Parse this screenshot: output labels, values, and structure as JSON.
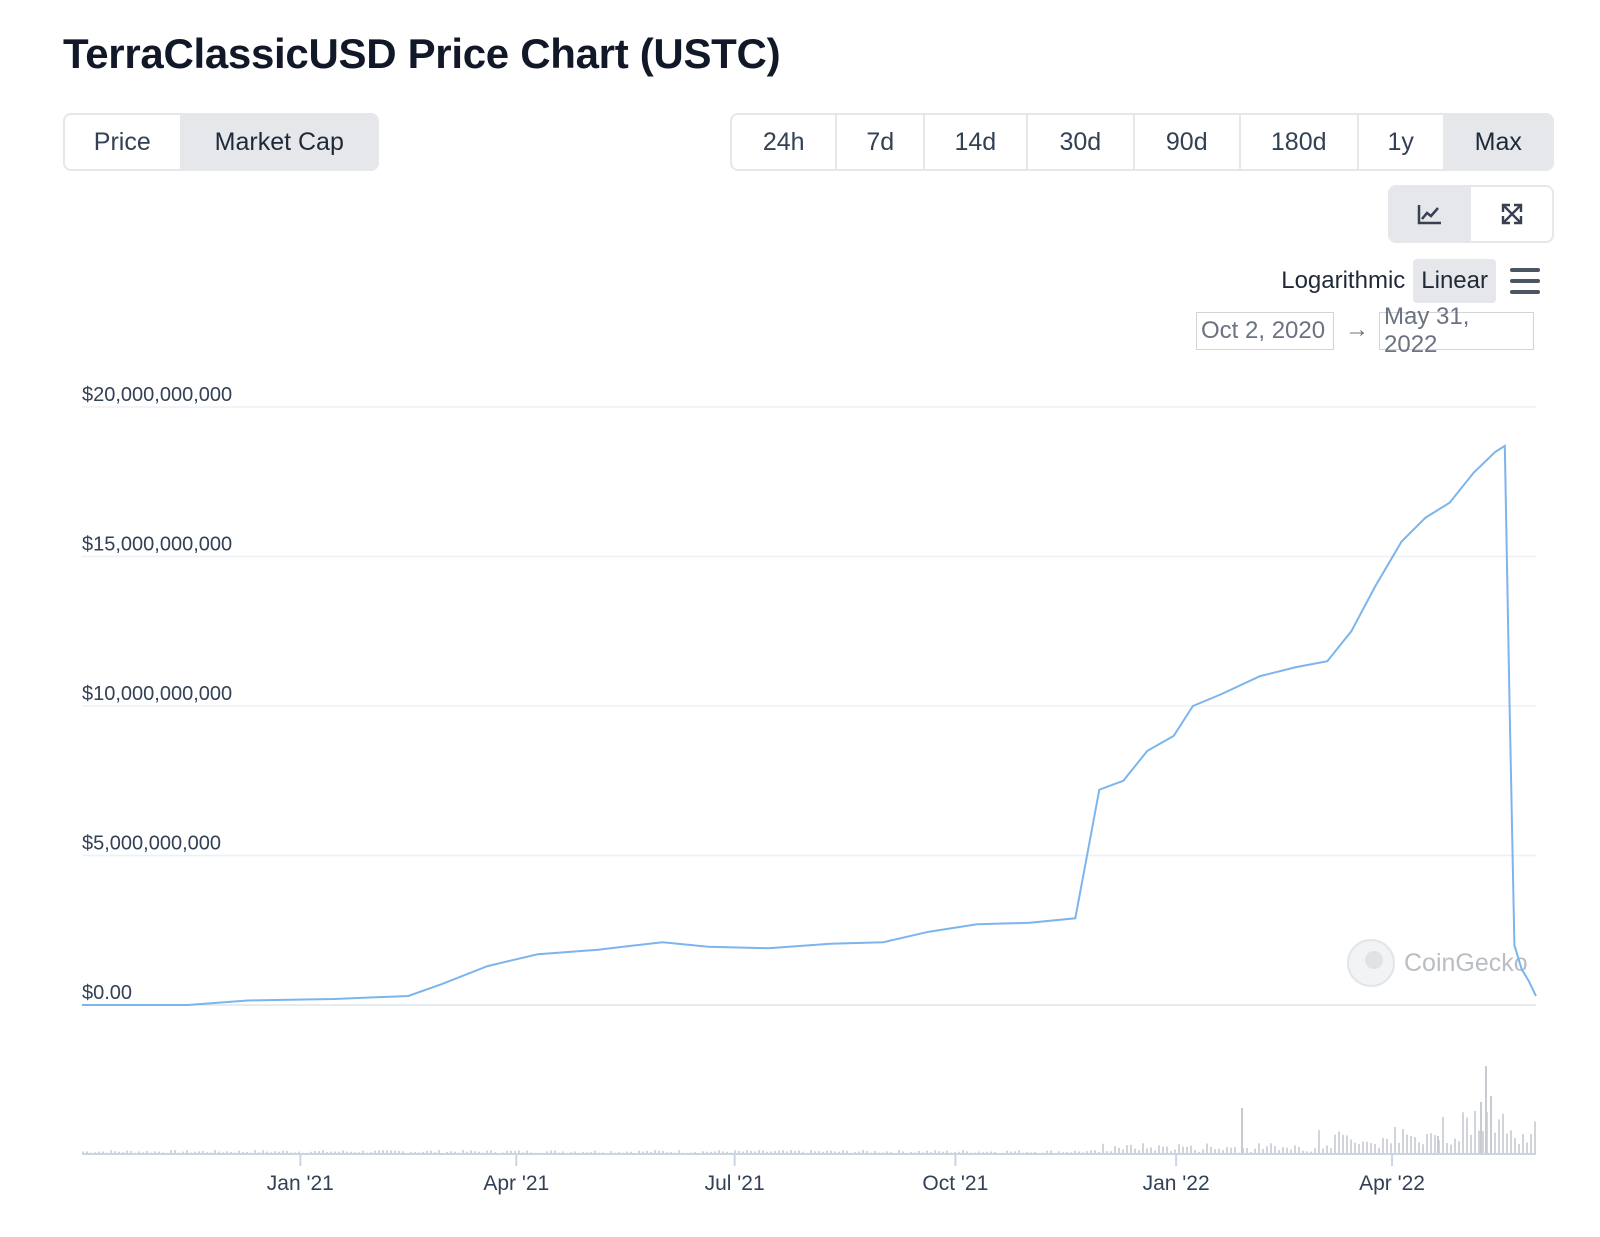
{
  "header": {
    "title": "TerraClassicUSD Price Chart (USTC)"
  },
  "metric_tabs": [
    {
      "label": "Price",
      "active": false
    },
    {
      "label": "Market Cap",
      "active": true
    }
  ],
  "range_tabs": [
    {
      "label": "24h",
      "active": false
    },
    {
      "label": "7d",
      "active": false
    },
    {
      "label": "14d",
      "active": false
    },
    {
      "label": "30d",
      "active": false
    },
    {
      "label": "90d",
      "active": false
    },
    {
      "label": "180d",
      "active": false
    },
    {
      "label": "1y",
      "active": false
    },
    {
      "label": "Max",
      "active": true
    }
  ],
  "view_buttons": [
    {
      "icon": "line-chart-icon",
      "active": true
    },
    {
      "icon": "expand-icon",
      "active": false
    }
  ],
  "scale": {
    "options": [
      "Logarithmic",
      "Linear"
    ],
    "selected": "Linear",
    "menu_icon": "hamburger-menu-icon"
  },
  "date_range": {
    "from": "Oct 2, 2020",
    "to": "May 31, 2022",
    "arrow": "→"
  },
  "watermark": {
    "text": "CoinGecko",
    "icon": "gecko-logo-icon"
  },
  "colors": {
    "line": "#7cb5ec",
    "volume": "#d1d5db",
    "grid": "#eef0f3",
    "axis": "#cbd5e1"
  },
  "chart_data": {
    "type": "line",
    "title": "",
    "xlabel": "",
    "ylabel": "",
    "xlim": [
      "2020-10-02",
      "2022-05-31"
    ],
    "ylim": [
      0,
      20000000000
    ],
    "y_ticks": [
      {
        "value": 0,
        "label": "$0.00"
      },
      {
        "value": 5000000000,
        "label": "$5,000,000,000"
      },
      {
        "value": 10000000000,
        "label": "$10,000,000,000"
      },
      {
        "value": 15000000000,
        "label": "$15,000,000,000"
      },
      {
        "value": 20000000000,
        "label": "$20,000,000,000"
      }
    ],
    "x_ticks": [
      {
        "date": "2021-01-01",
        "label": "Jan '21"
      },
      {
        "date": "2021-04-01",
        "label": "Apr '21"
      },
      {
        "date": "2021-07-01",
        "label": "Jul '21"
      },
      {
        "date": "2021-10-01",
        "label": "Oct '21"
      },
      {
        "date": "2022-01-01",
        "label": "Jan '22"
      },
      {
        "date": "2022-04-01",
        "label": "Apr '22"
      }
    ],
    "grid": true,
    "legend": "none",
    "series": [
      {
        "values": [
          [
            "2020-10-02",
            0
          ],
          [
            "2020-11-15",
            0
          ],
          [
            "2020-12-10",
            150000000
          ],
          [
            "2021-01-15",
            200000000
          ],
          [
            "2021-02-15",
            300000000
          ],
          [
            "2021-03-01",
            700000000
          ],
          [
            "2021-03-20",
            1300000000
          ],
          [
            "2021-04-10",
            1700000000
          ],
          [
            "2021-05-05",
            1850000000
          ],
          [
            "2021-06-01",
            2100000000
          ],
          [
            "2021-06-20",
            1950000000
          ],
          [
            "2021-07-15",
            1900000000
          ],
          [
            "2021-08-10",
            2050000000
          ],
          [
            "2021-09-01",
            2100000000
          ],
          [
            "2021-09-20",
            2450000000
          ],
          [
            "2021-10-10",
            2700000000
          ],
          [
            "2021-11-01",
            2750000000
          ],
          [
            "2021-11-20",
            2900000000
          ],
          [
            "2021-11-30",
            7200000000
          ],
          [
            "2021-12-10",
            7500000000
          ],
          [
            "2021-12-20",
            8500000000
          ],
          [
            "2021-12-31",
            9000000000
          ],
          [
            "2022-01-08",
            10000000000
          ],
          [
            "2022-01-20",
            10400000000
          ],
          [
            "2022-02-05",
            11000000000
          ],
          [
            "2022-02-20",
            11300000000
          ],
          [
            "2022-03-05",
            11500000000
          ],
          [
            "2022-03-15",
            12500000000
          ],
          [
            "2022-03-25",
            14000000000
          ],
          [
            "2022-04-05",
            15500000000
          ],
          [
            "2022-04-15",
            16300000000
          ],
          [
            "2022-04-25",
            16800000000
          ],
          [
            "2022-05-05",
            17800000000
          ],
          [
            "2022-05-14",
            18500000000
          ],
          [
            "2022-05-18",
            18700000000
          ],
          [
            "2022-05-20",
            10000000000
          ],
          [
            "2022-05-22",
            2000000000
          ],
          [
            "2022-05-25",
            1200000000
          ],
          [
            "2022-05-28",
            800000000
          ],
          [
            "2022-05-31",
            300000000
          ]
        ]
      }
    ]
  }
}
